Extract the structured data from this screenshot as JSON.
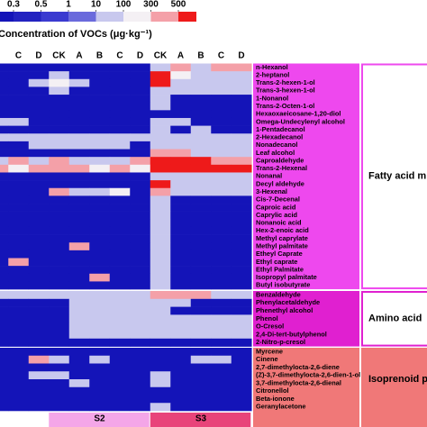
{
  "chart_data": {
    "type": "heatmap",
    "legend_title": "Concentration of VOCs (μg·kg⁻¹)",
    "scale": {
      "ticks": [
        0.3,
        0.5,
        1,
        10,
        100,
        300,
        500
      ],
      "colors": [
        "#1414b8",
        "#2222c0",
        "#3a3ad0",
        "#6a6adc",
        "#c8c8ee",
        "#f4f0f4",
        "#f4a0a8",
        "#ee1a1a"
      ]
    },
    "column_groups": [
      {
        "name": null,
        "color": null,
        "categories": [
          null,
          "C",
          "D"
        ]
      },
      {
        "name": "S2",
        "color": "#f4a6e8",
        "categories": [
          "CK",
          "A",
          "B",
          "C",
          "D"
        ]
      },
      {
        "name": "S3",
        "color": "#e8447a",
        "categories": [
          "CK",
          "A",
          "B",
          "C",
          "D"
        ]
      }
    ],
    "groups": [
      {
        "name": "Fatty acid m",
        "color": "#ee48ee",
        "rows": [
          "n-Hexanol",
          "2-heptanol",
          "Trans-2-hexen-1-ol",
          "Trans-3-hexen-1-ol",
          "1-Nonanol",
          "Trans-2-Octen-1-ol",
          "Hexaoxaeicosane-1,20-diol",
          "Omega-Undecylenyl alcohol",
          "1-Pentadecanol",
          "2-Hexadecanol",
          "Nonadecanol",
          "Leaf alcohol",
          "Caproaldehyde",
          "Trans-2-Hexenal",
          "Nonanal",
          "Decyl aldehyde",
          "3-Hexenal",
          "Cis-7-Decenal",
          "Caproic acid",
          "Caprylic acid",
          "Nonanoic acid",
          "Hex-2-enoic acid",
          "Methyl caprylate",
          "Methyl palmitate",
          "Etheyl Caprate",
          "Ethyl caprate",
          "Ethyl Palmitate",
          "Isopropyl palmitate",
          "Butyl isobutyrate"
        ],
        "values": [
          [
            0.2,
            0.2,
            0.2,
            0.2,
            0.2,
            0.2,
            0.2,
            0.2,
            50,
            400,
            50,
            400,
            400
          ],
          [
            0.2,
            0.2,
            0.2,
            50,
            0.2,
            0.2,
            0.2,
            0.2,
            800,
            150,
            50,
            50,
            50
          ],
          [
            0.2,
            0.2,
            50,
            150,
            50,
            0.2,
            0.2,
            0.2,
            800,
            50,
            50,
            50,
            50
          ],
          [
            0.2,
            0.2,
            0.2,
            50,
            0.2,
            0.2,
            0.2,
            0.2,
            50,
            50,
            50,
            50,
            50
          ],
          [
            0.2,
            0.2,
            0.2,
            0.2,
            0.2,
            0.2,
            0.2,
            0.2,
            50,
            0.2,
            0.2,
            0.2,
            0.2
          ],
          [
            0.2,
            0.2,
            0.2,
            0.2,
            0.2,
            0.2,
            0.2,
            0.2,
            50,
            0.2,
            0.2,
            0.2,
            0.2
          ],
          [
            0.2,
            0.2,
            0.2,
            0.2,
            0.2,
            0.2,
            0.2,
            0.2,
            0.2,
            0.2,
            0.2,
            0.2,
            0.2
          ],
          [
            50,
            50,
            0.2,
            0.2,
            0.2,
            0.2,
            0.2,
            0.2,
            50,
            50,
            0.2,
            0.2,
            0.2
          ],
          [
            0.2,
            0.2,
            0.2,
            0.2,
            0.2,
            0.2,
            0.2,
            0.2,
            50,
            0.2,
            50,
            0.2,
            0.2
          ],
          [
            50,
            50,
            50,
            50,
            50,
            50,
            50,
            50,
            50,
            50,
            50,
            50,
            50
          ],
          [
            0.2,
            0.2,
            50,
            50,
            50,
            50,
            50,
            0.2,
            50,
            50,
            50,
            50,
            50
          ],
          [
            0.2,
            0.2,
            0.2,
            0.2,
            0.2,
            0.2,
            0.2,
            0.2,
            400,
            400,
            50,
            50,
            50
          ],
          [
            50,
            400,
            50,
            400,
            50,
            50,
            50,
            400,
            800,
            800,
            800,
            400,
            400
          ],
          [
            400,
            150,
            400,
            400,
            400,
            150,
            400,
            150,
            800,
            800,
            800,
            800,
            800
          ],
          [
            0.2,
            0.2,
            0.2,
            0.2,
            0.2,
            0.2,
            0.2,
            0.2,
            50,
            50,
            50,
            50,
            50
          ],
          [
            0.2,
            0.2,
            0.2,
            0.2,
            0.2,
            0.2,
            0.2,
            0.2,
            800,
            50,
            50,
            50,
            50
          ],
          [
            0.2,
            0.2,
            0.2,
            400,
            50,
            50,
            150,
            0.2,
            400,
            50,
            50,
            50,
            50
          ],
          [
            0.2,
            0.2,
            0.2,
            0.2,
            0.2,
            0.2,
            0.2,
            0.2,
            50,
            0.2,
            0.2,
            0.2,
            0.2
          ],
          [
            0.2,
            0.2,
            0.2,
            0.2,
            0.2,
            0.2,
            0.2,
            0.2,
            50,
            0.2,
            0.2,
            0.2,
            0.2
          ],
          [
            0.2,
            0.2,
            0.2,
            0.2,
            0.2,
            0.2,
            0.2,
            0.2,
            50,
            0.2,
            0.2,
            0.2,
            0.2
          ],
          [
            0.2,
            0.2,
            0.2,
            0.2,
            0.2,
            0.2,
            0.2,
            0.2,
            50,
            0.2,
            0.2,
            0.2,
            0.2
          ],
          [
            0.2,
            0.2,
            0.2,
            0.2,
            0.2,
            0.2,
            0.2,
            0.2,
            50,
            0.2,
            0.2,
            0.2,
            0.2
          ],
          [
            0.2,
            0.2,
            0.2,
            0.2,
            0.2,
            0.2,
            0.2,
            0.2,
            50,
            0.2,
            0.2,
            0.2,
            0.2
          ],
          [
            0.2,
            0.2,
            0.2,
            0.2,
            400,
            0.2,
            0.2,
            0.2,
            50,
            0.2,
            0.2,
            0.2,
            0.2
          ],
          [
            0.2,
            0.2,
            0.2,
            0.2,
            0.2,
            0.2,
            0.2,
            0.2,
            50,
            0.2,
            0.2,
            0.2,
            0.2
          ],
          [
            0.2,
            400,
            0.2,
            0.2,
            0.2,
            0.2,
            0.2,
            0.2,
            50,
            0.2,
            0.2,
            0.2,
            0.2
          ],
          [
            0.2,
            0.2,
            0.2,
            0.2,
            0.2,
            0.2,
            0.2,
            0.2,
            50,
            0.2,
            0.2,
            0.2,
            0.2
          ],
          [
            0.2,
            0.2,
            0.2,
            0.2,
            0.2,
            400,
            0.2,
            0.2,
            50,
            0.2,
            0.2,
            0.2,
            0.2
          ],
          [
            0.2,
            0.2,
            0.2,
            0.2,
            0.2,
            0.2,
            0.2,
            0.2,
            50,
            0.2,
            0.2,
            0.2,
            0.2
          ]
        ]
      },
      {
        "name": "Amino acid",
        "color": "#e020d0",
        "rows": [
          "Benzaldehyde",
          "Phenylacetaldehyde",
          "Phenethyl alcohol",
          "Phenol",
          "O-Cresol",
          "2,4-Di-tert-butylphenol",
          "2-Nitro-p-cresol"
        ],
        "values": [
          [
            50,
            50,
            50,
            50,
            50,
            50,
            50,
            50,
            400,
            400,
            400,
            50,
            50
          ],
          [
            0.2,
            0.2,
            0.2,
            0.2,
            50,
            50,
            50,
            50,
            50,
            50,
            0.2,
            0.2,
            0.2
          ],
          [
            0.2,
            0.2,
            0.2,
            0.2,
            50,
            50,
            50,
            50,
            50,
            0.2,
            0.2,
            0.2,
            0.2
          ],
          [
            0.2,
            0.2,
            0.2,
            0.2,
            50,
            50,
            50,
            50,
            50,
            50,
            50,
            50,
            50
          ],
          [
            0.2,
            0.2,
            0.2,
            0.2,
            50,
            50,
            50,
            50,
            50,
            50,
            50,
            50,
            50
          ],
          [
            0.2,
            0.2,
            0.2,
            0.2,
            50,
            50,
            50,
            50,
            50,
            50,
            50,
            50,
            50
          ],
          [
            0.2,
            0.2,
            0.2,
            0.2,
            0.2,
            0.2,
            0.2,
            0.2,
            0.2,
            0.2,
            0.2,
            0.2,
            0.2
          ]
        ]
      },
      {
        "name": "Isoprenoid p",
        "color": "#f07878",
        "rows": [
          "Myrcene",
          "Cinene",
          "2,7-dimethylocta-2,6-diene",
          "(Z)-3,7-dimethylocta-2,6-dien-1-ol",
          "3,7-dimethylocta-2,6-dienal",
          "Citronellol",
          "Beta-ionone",
          "Geranylacetone"
        ],
        "values": [
          [
            0.2,
            0.2,
            0.2,
            0.2,
            0.2,
            0.2,
            0.2,
            0.2,
            0.2,
            0.2,
            0.2,
            0.2,
            0.2
          ],
          [
            0.2,
            0.2,
            400,
            50,
            0.2,
            50,
            0.2,
            0.2,
            0.2,
            0.2,
            50,
            50,
            0.2
          ],
          [
            0.2,
            0.2,
            0.2,
            0.2,
            0.2,
            0.2,
            0.2,
            0.2,
            0.2,
            0.2,
            0.2,
            0.2,
            0.2
          ],
          [
            0.2,
            0.2,
            50,
            50,
            0.2,
            0.2,
            0.2,
            0.2,
            50,
            0.2,
            0.2,
            0.2,
            0.2
          ],
          [
            0.2,
            0.2,
            0.2,
            0.2,
            50,
            0.2,
            0.2,
            0.2,
            50,
            0.2,
            0.2,
            0.2,
            0.2
          ],
          [
            0.2,
            0.2,
            0.2,
            0.2,
            0.2,
            0.2,
            0.2,
            0.2,
            0.2,
            0.2,
            0.2,
            0.2,
            0.2
          ],
          [
            0.2,
            0.2,
            0.2,
            0.2,
            0.2,
            0.2,
            0.2,
            0.2,
            0.2,
            0.2,
            0.2,
            0.2,
            0.2
          ],
          [
            0.2,
            0.2,
            0.2,
            0.2,
            0.2,
            0.2,
            0.2,
            0.2,
            50,
            0.2,
            0.2,
            0.2,
            0.2
          ]
        ]
      }
    ]
  }
}
